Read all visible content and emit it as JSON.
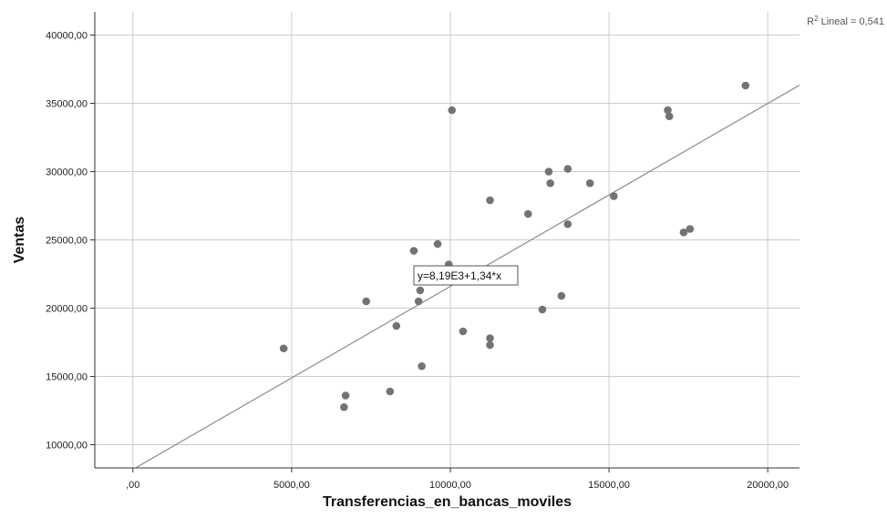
{
  "chart_data": {
    "type": "scatter",
    "title": "",
    "xlabel": "Transferencias_en_bancas_moviles",
    "ylabel": "Ventas",
    "xlim": [
      -1200,
      21000
    ],
    "ylim": [
      8300,
      41700
    ],
    "x_ticks": [
      0,
      5000,
      10000,
      15000,
      20000
    ],
    "x_tick_labels": [
      ",00",
      "5000,00",
      "10000,00",
      "15000,00",
      "20000,00"
    ],
    "y_ticks": [
      10000,
      15000,
      20000,
      25000,
      30000,
      35000,
      40000
    ],
    "y_tick_labels": [
      "10000,00",
      "15000,00",
      "20000,00",
      "25000,00",
      "30000,00",
      "35000,00",
      "40000,00"
    ],
    "grid": true,
    "r2_prefix": "R",
    "r2_sup": "2",
    "r2_suffix": " Lineal = 0,541",
    "fit_equation": "y=8,19E3+1,34*x",
    "fit": {
      "intercept": 8190,
      "slope": 1.34
    },
    "point_color": "#737373",
    "line_color": "#8c8c8c",
    "points": [
      {
        "x": 4750,
        "y": 17050
      },
      {
        "x": 6650,
        "y": 12750
      },
      {
        "x": 6700,
        "y": 13600
      },
      {
        "x": 7350,
        "y": 20500
      },
      {
        "x": 8100,
        "y": 13900
      },
      {
        "x": 8300,
        "y": 18700
      },
      {
        "x": 8850,
        "y": 24200
      },
      {
        "x": 9000,
        "y": 20500
      },
      {
        "x": 9050,
        "y": 21300
      },
      {
        "x": 9100,
        "y": 15750
      },
      {
        "x": 9600,
        "y": 24700
      },
      {
        "x": 9950,
        "y": 23200
      },
      {
        "x": 10050,
        "y": 34500
      },
      {
        "x": 10400,
        "y": 18300
      },
      {
        "x": 11250,
        "y": 27900
      },
      {
        "x": 11250,
        "y": 17800
      },
      {
        "x": 11250,
        "y": 17300
      },
      {
        "x": 12450,
        "y": 26900
      },
      {
        "x": 12900,
        "y": 19900
      },
      {
        "x": 13100,
        "y": 30000
      },
      {
        "x": 13150,
        "y": 29150
      },
      {
        "x": 13500,
        "y": 20900
      },
      {
        "x": 13700,
        "y": 30200
      },
      {
        "x": 13700,
        "y": 26150
      },
      {
        "x": 14400,
        "y": 29150
      },
      {
        "x": 15150,
        "y": 28200
      },
      {
        "x": 16850,
        "y": 34500
      },
      {
        "x": 16900,
        "y": 34050
      },
      {
        "x": 17350,
        "y": 25550
      },
      {
        "x": 17550,
        "y": 25800
      },
      {
        "x": 19300,
        "y": 36300
      }
    ]
  }
}
